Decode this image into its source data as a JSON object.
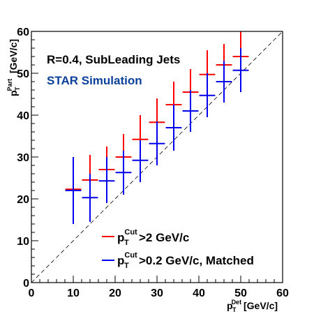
{
  "chart_data": {
    "type": "scatter",
    "title": "",
    "annotations": [
      {
        "text": "R=0.4, SubLeading Jets",
        "color": "#000000"
      },
      {
        "text": "STAR Simulation",
        "color": "#0a3f9a"
      }
    ],
    "xlabel": {
      "main": "p",
      "sub": "T",
      "sup": "Det",
      "unit": "[GeV/c]"
    },
    "ylabel": {
      "main": "p",
      "sub": "T",
      "sup": "Part",
      "unit": "[GeV/c]"
    },
    "xlim": [
      0,
      60
    ],
    "ylim": [
      0,
      60
    ],
    "xticks": [
      0,
      10,
      20,
      30,
      40,
      50,
      60
    ],
    "yticks": [
      0,
      10,
      20,
      30,
      40,
      50,
      60
    ],
    "diagonal_reference": true,
    "grid": false,
    "legend_position": "bottom-right",
    "series": [
      {
        "name": "p_T^Cut>2 GeV/c",
        "legend": {
          "main": "p",
          "sub": "T",
          "sup": "Cut",
          "rest": ">2 GeV/c"
        },
        "color": "#ff0000",
        "points": [
          {
            "x": 10,
            "y": 22.3,
            "ylow": 16,
            "yhigh": 28.5
          },
          {
            "x": 14,
            "y": 24.5,
            "ylow": 18.5,
            "yhigh": 30.5
          },
          {
            "x": 18,
            "y": 27.0,
            "ylow": 21.5,
            "yhigh": 32.5
          },
          {
            "x": 22,
            "y": 30.0,
            "ylow": 24,
            "yhigh": 35.5
          },
          {
            "x": 26,
            "y": 34.2,
            "ylow": 28,
            "yhigh": 40
          },
          {
            "x": 30,
            "y": 38.3,
            "ylow": 32.3,
            "yhigh": 44
          },
          {
            "x": 34,
            "y": 42.5,
            "ylow": 37,
            "yhigh": 48
          },
          {
            "x": 38,
            "y": 45.5,
            "ylow": 39.5,
            "yhigh": 51
          },
          {
            "x": 42,
            "y": 49.7,
            "ylow": 43.5,
            "yhigh": 55.5
          },
          {
            "x": 46,
            "y": 52.0,
            "ylow": 46.5,
            "yhigh": 57
          },
          {
            "x": 50,
            "y": 54.0,
            "ylow": 48,
            "yhigh": 60
          }
        ]
      },
      {
        "name": "p_T^Cut>0.2 GeV/c, Matched",
        "legend": {
          "main": "p",
          "sub": "T",
          "sup": "Cut",
          "rest": ">0.2 GeV/c, Matched"
        },
        "color": "#0000ee",
        "points": [
          {
            "x": 10,
            "y": 22.0,
            "ylow": 14,
            "yhigh": 30
          },
          {
            "x": 14,
            "y": 20.3,
            "ylow": 14.5,
            "yhigh": 26
          },
          {
            "x": 18,
            "y": 24.3,
            "ylow": 19,
            "yhigh": 30
          },
          {
            "x": 22,
            "y": 26.3,
            "ylow": 21,
            "yhigh": 31.5
          },
          {
            "x": 26,
            "y": 29.2,
            "ylow": 24,
            "yhigh": 34
          },
          {
            "x": 30,
            "y": 33.2,
            "ylow": 28,
            "yhigh": 38.5
          },
          {
            "x": 34,
            "y": 37.0,
            "ylow": 31.5,
            "yhigh": 42.5
          },
          {
            "x": 38,
            "y": 41.0,
            "ylow": 36,
            "yhigh": 46
          },
          {
            "x": 42,
            "y": 44.7,
            "ylow": 39.5,
            "yhigh": 50
          },
          {
            "x": 46,
            "y": 48.0,
            "ylow": 43,
            "yhigh": 53
          },
          {
            "x": 50,
            "y": 50.7,
            "ylow": 45.5,
            "yhigh": 56
          }
        ]
      }
    ]
  }
}
